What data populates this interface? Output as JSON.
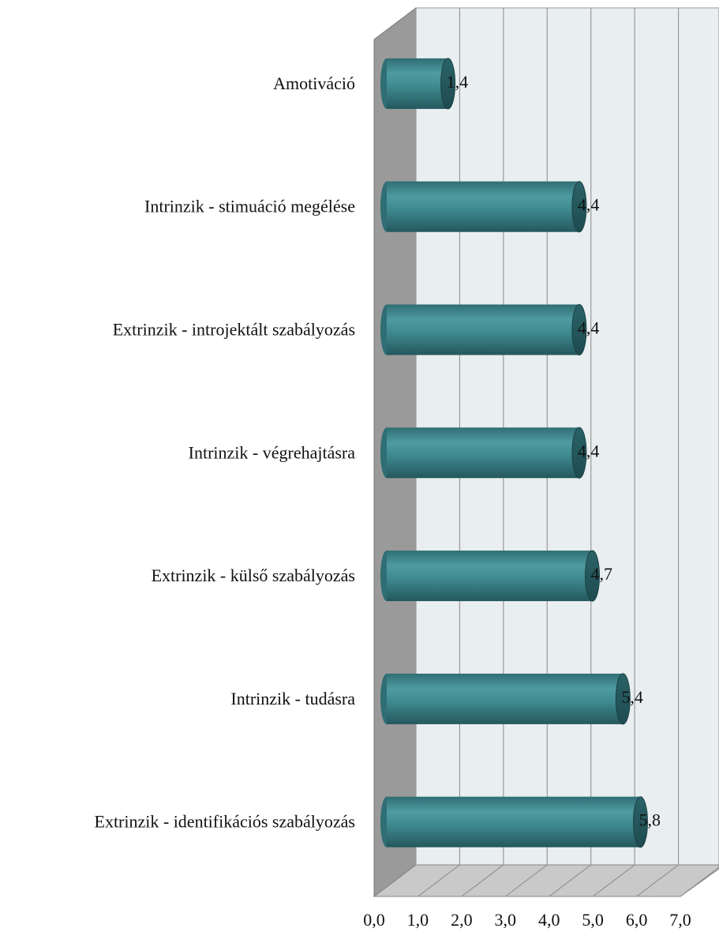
{
  "chart_data": {
    "type": "bar",
    "orientation": "horizontal",
    "categories": [
      "Amotiváció",
      "Intrinzik - stimuáció megélése",
      "Extrinzik - introjektált szabályozás",
      "Intrinzik - végrehajtásra",
      "Extrinzik - külső szabályozás",
      "Intrinzik - tudásra",
      "Extrinzik - identifikációs szabályozás"
    ],
    "values": [
      1.4,
      4.4,
      4.4,
      4.4,
      4.7,
      5.4,
      5.8
    ],
    "value_labels": [
      "1,4",
      "4,4",
      "4,4",
      "4,4",
      "4,7",
      "5,4",
      "5,8"
    ],
    "color": "#3f8a91",
    "xlim": [
      0,
      7
    ],
    "xticks": [
      {
        "value": 0,
        "label": "0,0"
      },
      {
        "value": 1,
        "label": "1,0"
      },
      {
        "value": 2,
        "label": "2,0"
      },
      {
        "value": 3,
        "label": "3,0"
      },
      {
        "value": 4,
        "label": "4,0"
      },
      {
        "value": 5,
        "label": "5,0"
      },
      {
        "value": 6,
        "label": "6,0"
      },
      {
        "value": 7,
        "label": "7,0"
      }
    ],
    "grid": true
  }
}
